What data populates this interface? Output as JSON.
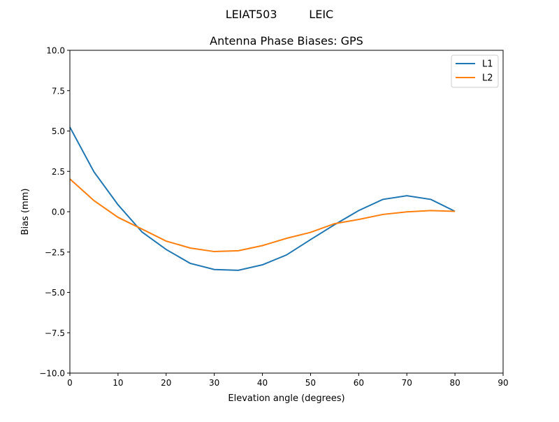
{
  "chart_data": {
    "type": "line",
    "suptitle": "LEIAT503         LEIC",
    "title": "Antenna Phase Biases: GPS",
    "xlabel": "Elevation angle (degrees)",
    "ylabel": "Bias (mm)",
    "xlim": [
      0,
      90
    ],
    "ylim": [
      -10,
      10
    ],
    "xticks": [
      0,
      10,
      20,
      30,
      40,
      50,
      60,
      70,
      80,
      90
    ],
    "yticks": [
      -10.0,
      -7.5,
      -5.0,
      -2.5,
      0.0,
      2.5,
      5.0,
      7.5,
      10.0
    ],
    "xtick_labels": [
      "0",
      "10",
      "20",
      "30",
      "40",
      "50",
      "60",
      "70",
      "80",
      "90"
    ],
    "ytick_labels": [
      "−10.0",
      "−7.5",
      "−5.0",
      "−2.5",
      "0.0",
      "2.5",
      "5.0",
      "7.5",
      "10.0"
    ],
    "grid": false,
    "legend_position": "top-right",
    "x": [
      0,
      5,
      10,
      15,
      20,
      25,
      30,
      35,
      40,
      45,
      50,
      55,
      60,
      65,
      70,
      75,
      80
    ],
    "series": [
      {
        "name": "L1",
        "color": "#1f77b4",
        "values": [
          5.24,
          2.47,
          0.43,
          -1.26,
          -2.34,
          -3.2,
          -3.58,
          -3.63,
          -3.29,
          -2.68,
          -1.73,
          -0.8,
          0.07,
          0.76,
          0.99,
          0.76,
          0.02
        ]
      },
      {
        "name": "L2",
        "color": "#ff7f0e",
        "values": [
          2.03,
          0.69,
          -0.35,
          -1.08,
          -1.82,
          -2.25,
          -2.47,
          -2.42,
          -2.1,
          -1.65,
          -1.28,
          -0.74,
          -0.48,
          -0.17,
          -0.01,
          0.07,
          0.02
        ]
      }
    ]
  }
}
